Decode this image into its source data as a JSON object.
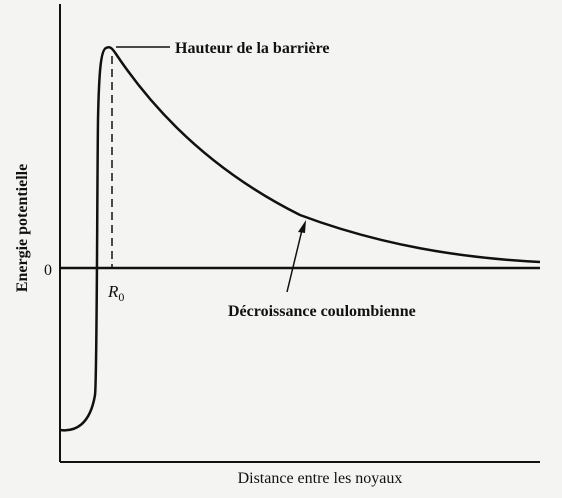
{
  "labels": {
    "barrier": "Hauteur de la barrière",
    "coulomb": "Décroissance coulombienne",
    "y_axis": "Energie potentielle",
    "x_axis": "Distance entre les noyaux",
    "zero": "0",
    "r0": {
      "base": "R",
      "sub": "0"
    }
  }
}
